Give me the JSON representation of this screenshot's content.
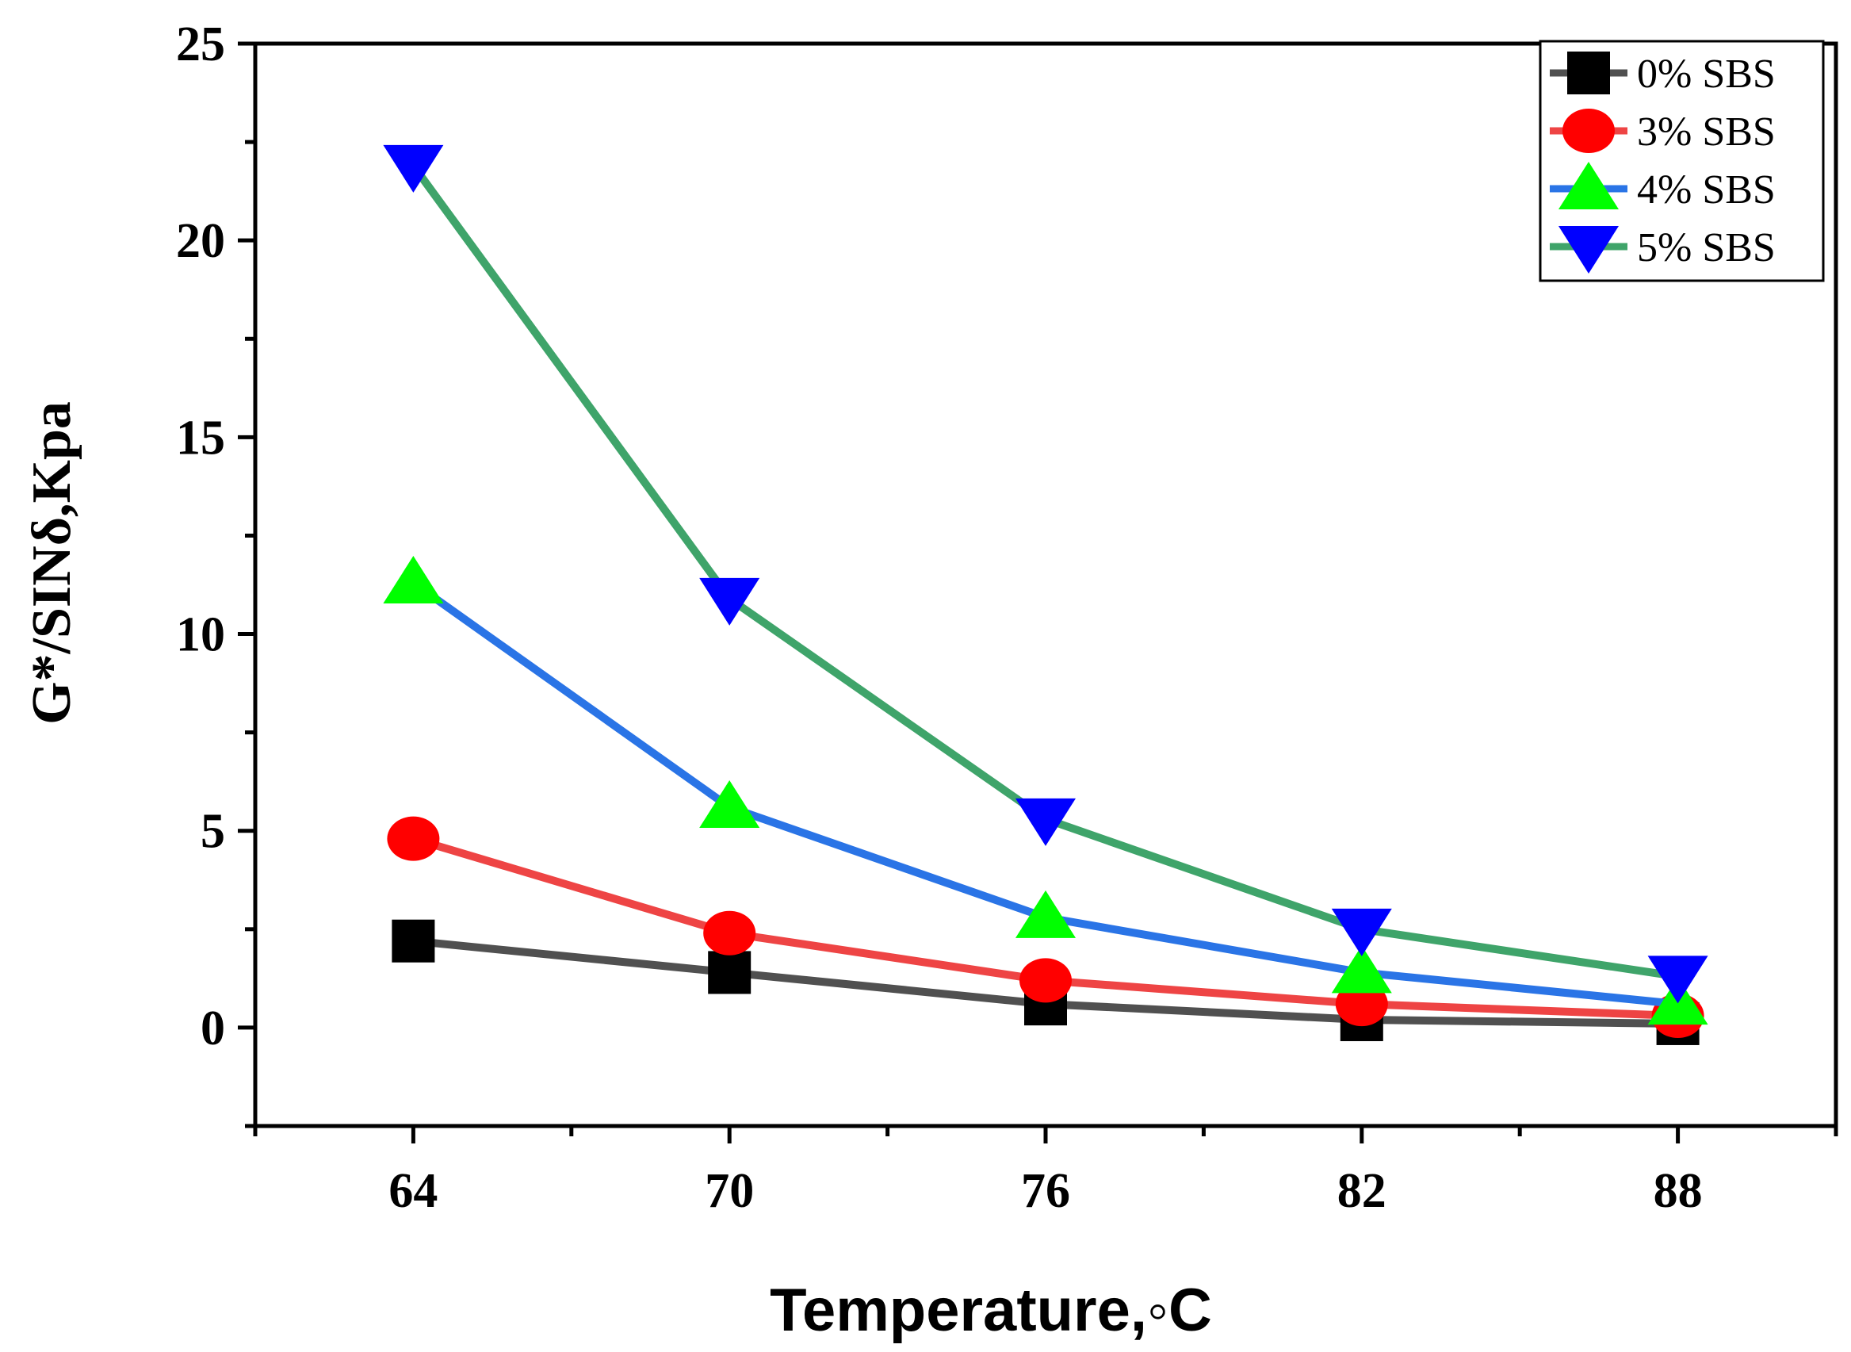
{
  "chart_data": {
    "type": "line",
    "title": "",
    "xlabel": "Temperature,◦C",
    "ylabel": "G*/SINδ,Kpa",
    "x": [
      64,
      70,
      76,
      82,
      88
    ],
    "xticks": [
      "64",
      "70",
      "76",
      "82",
      "88"
    ],
    "xlim": [
      61,
      91
    ],
    "ylim": [
      -2.5,
      25
    ],
    "yticks": [
      "0",
      "5",
      "10",
      "15",
      "20",
      "25"
    ],
    "grid": false,
    "legend_position": "top-right",
    "series": [
      {
        "name": "0% SBS",
        "values": [
          2.2,
          1.4,
          0.6,
          0.2,
          0.1
        ],
        "line_color": "#505050",
        "marker_color": "#000000",
        "marker": "square"
      },
      {
        "name": "3% SBS",
        "values": [
          4.8,
          2.4,
          1.2,
          0.6,
          0.3
        ],
        "line_color": "#ee4444",
        "marker_color": "#ff0000",
        "marker": "circle"
      },
      {
        "name": "4% SBS",
        "values": [
          11.3,
          5.6,
          2.8,
          1.4,
          0.6
        ],
        "line_color": "#2a74e6",
        "marker_color": "#00ff00",
        "marker": "triangle-up"
      },
      {
        "name": "5% SBS",
        "values": [
          21.9,
          10.9,
          5.3,
          2.5,
          1.3
        ],
        "line_color": "#3fa46a",
        "marker_color": "#0000ff",
        "marker": "triangle-down"
      }
    ]
  }
}
